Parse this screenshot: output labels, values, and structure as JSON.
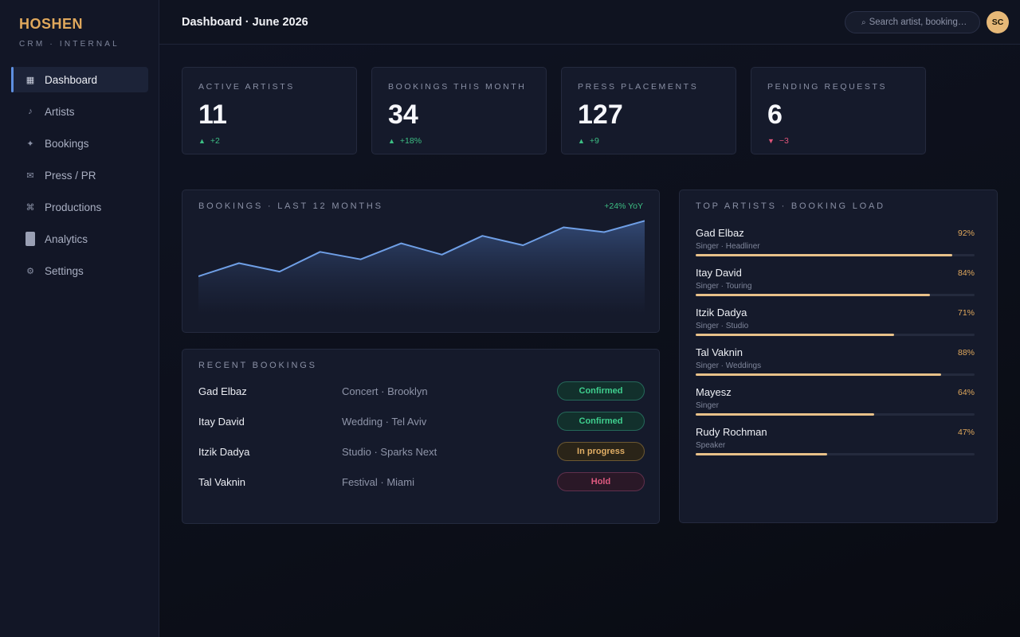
{
  "brand": {
    "name": "HOSHEN",
    "subtitle": "CRM · INTERNAL",
    "accent": "#e0a85c"
  },
  "sidebar": {
    "items": [
      {
        "label": "Dashboard",
        "icon": "grid-icon",
        "glyph": "▦",
        "active": true
      },
      {
        "label": "Artists",
        "icon": "music-note-icon",
        "glyph": "♪",
        "active": false
      },
      {
        "label": "Bookings",
        "icon": "sparkle-icon",
        "glyph": "✦",
        "active": false
      },
      {
        "label": "Press / PR",
        "icon": "envelope-icon",
        "glyph": "✉",
        "active": false
      },
      {
        "label": "Productions",
        "icon": "command-icon",
        "glyph": "⌘",
        "active": false
      },
      {
        "label": "Analytics",
        "icon": "analytics-icon",
        "glyph": "",
        "active": false
      },
      {
        "label": "Settings",
        "icon": "gear-icon",
        "glyph": "⚙",
        "active": false
      }
    ]
  },
  "header": {
    "title": "Dashboard · June 2026",
    "search": {
      "placeholder": "Search artist, booking…",
      "icon": "search-icon",
      "glyph": "⌕"
    },
    "avatar_initials": "SC"
  },
  "stats": [
    {
      "label": "ACTIVE ARTISTS",
      "value": "11",
      "delta": "+2",
      "direction": "up",
      "arrow": "▲"
    },
    {
      "label": "BOOKINGS THIS MONTH",
      "value": "34",
      "delta": "+18%",
      "direction": "up",
      "arrow": "▲"
    },
    {
      "label": "PRESS PLACEMENTS",
      "value": "127",
      "delta": "+9",
      "direction": "up",
      "arrow": "▲"
    },
    {
      "label": "PENDING REQUESTS",
      "value": "6",
      "delta": "−3",
      "direction": "down",
      "arrow": "▼"
    }
  ],
  "bookings_chart": {
    "title": "BOOKINGS · LAST 12 MONTHS",
    "yoy": "+24% YoY"
  },
  "chart_data": {
    "type": "area",
    "title": "BOOKINGS · LAST 12 MONTHS",
    "x": [
      1,
      2,
      3,
      4,
      5,
      6,
      7,
      8,
      9,
      10,
      11,
      12
    ],
    "values": [
      22,
      29,
      24.5,
      35,
      31,
      39.5,
      33.5,
      43.5,
      38.5,
      48,
      45.5,
      51.5
    ],
    "ylim": [
      0,
      55
    ],
    "grid": false,
    "line_color": "#6f9fe6",
    "annotation": "+24% YoY"
  },
  "recent_bookings": {
    "title": "RECENT BOOKINGS",
    "rows": [
      {
        "name": "Gad Elbaz",
        "detail": "Concert · Brooklyn",
        "status": "Confirmed",
        "kind": "confirmed"
      },
      {
        "name": "Itay David",
        "detail": "Wedding · Tel Aviv",
        "status": "Confirmed",
        "kind": "confirmed"
      },
      {
        "name": "Itzik Dadya",
        "detail": "Studio · Sparks Next",
        "status": "In progress",
        "kind": "progress"
      },
      {
        "name": "Tal Vaknin",
        "detail": "Festival · Miami",
        "status": "Hold",
        "kind": "hold"
      }
    ]
  },
  "top_artists": {
    "title": "TOP ARTISTS · BOOKING LOAD",
    "items": [
      {
        "name": "Gad Elbaz",
        "role": "Singer · Headliner",
        "pct_label": "92%",
        "load": 0.92
      },
      {
        "name": "Itay David",
        "role": "Singer · Touring",
        "pct_label": "84%",
        "load": 0.84
      },
      {
        "name": "Itzik Dadya",
        "role": "Singer · Studio",
        "pct_label": "71%",
        "load": 0.71
      },
      {
        "name": "Tal Vaknin",
        "role": "Singer · Weddings",
        "pct_label": "88%",
        "load": 0.88
      },
      {
        "name": "Mayesz",
        "role": "Singer",
        "pct_label": "64%",
        "load": 0.64
      },
      {
        "name": "Rudy Rochman",
        "role": "Speaker",
        "pct_label": "47%",
        "load": 0.47
      }
    ]
  }
}
